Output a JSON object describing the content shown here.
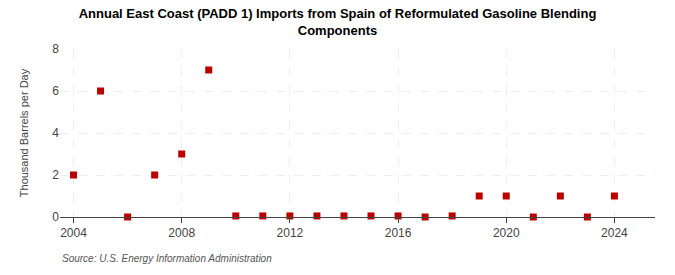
{
  "chart_data": {
    "type": "scatter",
    "title": "Annual East Coast (PADD 1) Imports from Spain of Reformulated Gasoline Blending\nComponents",
    "y_label": "Thousand Barrels per Day",
    "annotations": [
      "Source: U.S. Energy Information Administration"
    ],
    "x": [
      2004,
      2005,
      2006,
      2007,
      2008,
      2009,
      2010,
      2011,
      2012,
      2013,
      2014,
      2015,
      2016,
      2017,
      2018,
      2019,
      2020,
      2021,
      2022,
      2023,
      2024
    ],
    "values": [
      2,
      6,
      0,
      2,
      3,
      7,
      0.05,
      0.05,
      0.05,
      0.05,
      0.05,
      0.05,
      0.05,
      0,
      0.05,
      1,
      1,
      0,
      1,
      0,
      1
    ],
    "color": "#bb0000",
    "marker": "square",
    "xlim": [
      2003.5,
      2025.5
    ],
    "xticks": [
      2004,
      2008,
      2012,
      2016,
      2020,
      2024
    ],
    "ylim": [
      0,
      8
    ],
    "yticks": [
      0,
      2,
      4,
      6,
      8
    ],
    "grid": true
  }
}
